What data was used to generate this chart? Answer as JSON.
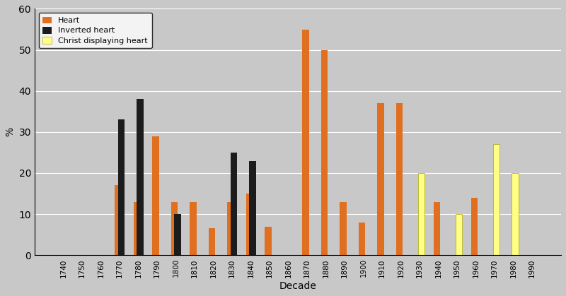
{
  "decades": [
    1740,
    1750,
    1760,
    1770,
    1780,
    1790,
    1800,
    1810,
    1820,
    1830,
    1840,
    1850,
    1860,
    1870,
    1880,
    1890,
    1900,
    1910,
    1920,
    1930,
    1940,
    1950,
    1960,
    1970,
    1980,
    1990
  ],
  "heart": [
    0,
    0,
    0,
    17,
    13,
    29,
    13,
    13,
    6.5,
    13,
    15,
    7,
    0,
    55,
    50,
    13,
    8,
    37,
    37,
    0,
    13,
    0,
    14,
    0,
    0,
    0
  ],
  "inverted_heart": [
    0,
    0,
    0,
    33,
    38,
    0,
    10,
    0,
    0,
    25,
    23,
    0,
    0,
    0,
    0,
    0,
    0,
    0,
    0,
    0,
    0,
    0,
    0,
    0,
    0,
    0
  ],
  "christ_heart": [
    0,
    0,
    0,
    0,
    0,
    0,
    0,
    0,
    0,
    0,
    0,
    0,
    0,
    0,
    0,
    0,
    0,
    0,
    0,
    20,
    0,
    10,
    0,
    27,
    20,
    0
  ],
  "heart_color": "#E07020",
  "inverted_color": "#1C1C1C",
  "christ_color": "#FFFF88",
  "xlabel": "Decade",
  "ylabel": "%",
  "ylim": [
    0,
    60
  ],
  "yticks": [
    0,
    10,
    20,
    30,
    40,
    50,
    60
  ],
  "bg_color": "#C8C8C8",
  "bar_width": 0.35,
  "legend_labels": [
    "Heart",
    "Inverted heart",
    "Christ displaying heart"
  ],
  "legend_handle_colors": [
    "#E07020",
    "#1C1C1C",
    "#FFFF88"
  ]
}
